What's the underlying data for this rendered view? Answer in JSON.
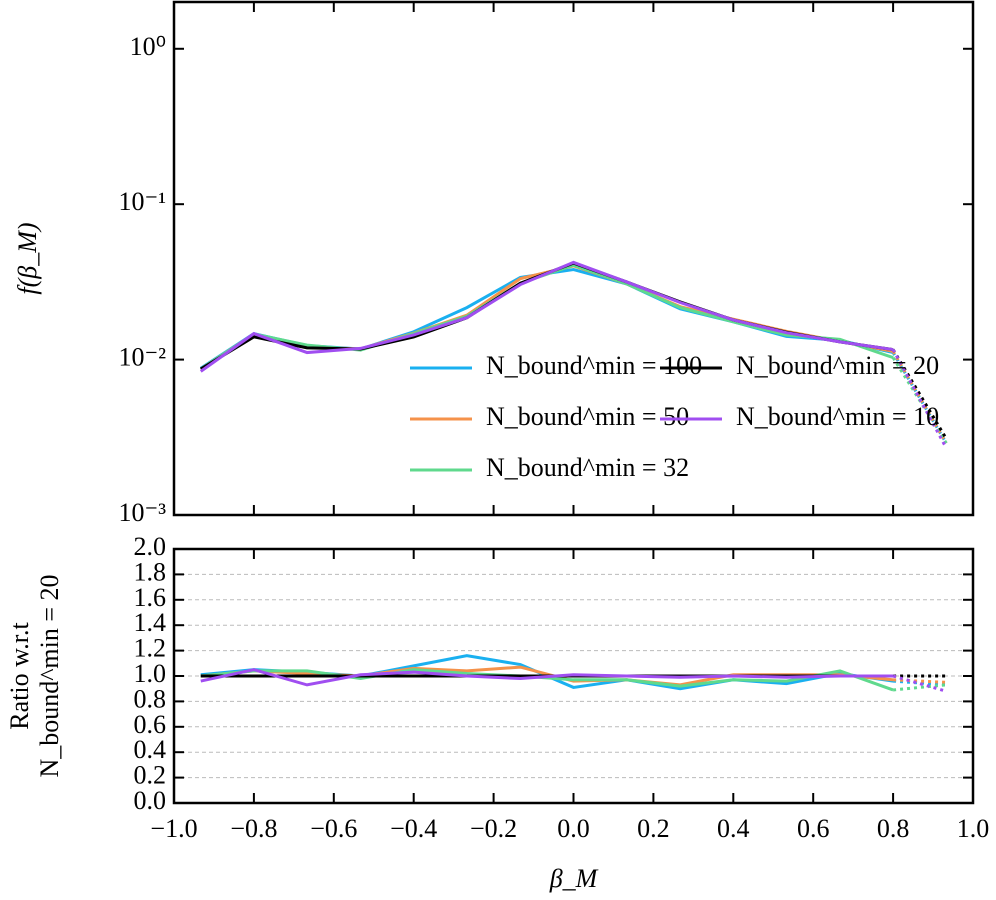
{
  "chart_data": [
    {
      "type": "line",
      "ylabel": "f(β_M)",
      "yscale": "log",
      "xlim": [
        -1,
        1
      ],
      "ylim": [
        0.001,
        2
      ],
      "xticks": [
        -1,
        -0.8,
        -0.6,
        -0.4,
        -0.2,
        0,
        0.2,
        0.4,
        0.6,
        0.8,
        1
      ],
      "xtick_labels": false,
      "yticks": [
        {
          "value": 1,
          "label": "10⁰"
        },
        {
          "value": 0.1,
          "label": "10⁻¹"
        },
        {
          "value": 0.01,
          "label": "10⁻²"
        },
        {
          "value": 0.001,
          "label": "10⁻³"
        }
      ],
      "legend": "lower right",
      "legend_columns": 2,
      "last_segment_style": "dotted",
      "x": [
        -0.933,
        -0.8,
        -0.667,
        -0.533,
        -0.4,
        -0.267,
        -0.133,
        0,
        0.133,
        0.267,
        0.4,
        0.533,
        0.667,
        0.8,
        0.933
      ],
      "series": [
        {
          "name": "N_bound^min = 100",
          "color": "#1ab0f0",
          "values": [
            0.0088,
            0.0147,
            0.0123,
            0.0117,
            0.0151,
            0.0216,
            0.0338,
            0.038,
            0.0307,
            0.0212,
            0.0175,
            0.0141,
            0.0133,
            0.0111,
            0.0029
          ]
        },
        {
          "name": "N_bound^min = 50",
          "color": "#f5924a",
          "values": [
            0.0087,
            0.0146,
            0.0121,
            0.0117,
            0.0148,
            0.0193,
            0.0332,
            0.0401,
            0.0307,
            0.0219,
            0.0182,
            0.0152,
            0.0131,
            0.0113,
            0.0029
          ]
        },
        {
          "name": "N_bound^min = 32",
          "color": "#5fd98d",
          "values": [
            0.0087,
            0.0146,
            0.0124,
            0.0115,
            0.0147,
            0.019,
            0.031,
            0.0405,
            0.0307,
            0.0216,
            0.0175,
            0.0144,
            0.0135,
            0.0103,
            0.0029
          ]
        },
        {
          "name": "N_bound^min = 20",
          "color": "#000000",
          "values": [
            0.0087,
            0.014,
            0.0119,
            0.0117,
            0.014,
            0.0186,
            0.031,
            0.0418,
            0.0316,
            0.0235,
            0.018,
            0.015,
            0.013,
            0.0116,
            0.0031
          ]
        },
        {
          "name": "N_bound^min = 10",
          "color": "#a04ef0",
          "values": [
            0.0084,
            0.0147,
            0.0111,
            0.0118,
            0.0144,
            0.0186,
            0.0304,
            0.0422,
            0.0316,
            0.0233,
            0.018,
            0.0149,
            0.013,
            0.0116,
            0.0027
          ]
        }
      ]
    },
    {
      "type": "line",
      "xlabel": "β_M",
      "ylabel": [
        "Ratio w.r.t",
        "N_bound^min = 20"
      ],
      "xlim": [
        -1,
        1
      ],
      "ylim": [
        0,
        2
      ],
      "grid": true,
      "last_segment_style": "dotted",
      "xticks": [
        {
          "value": -1,
          "label": "−1.0"
        },
        {
          "value": -0.8,
          "label": "−0.8"
        },
        {
          "value": -0.6,
          "label": "−0.6"
        },
        {
          "value": -0.4,
          "label": "−0.4"
        },
        {
          "value": -0.2,
          "label": "−0.2"
        },
        {
          "value": 0,
          "label": "0.0"
        },
        {
          "value": 0.2,
          "label": "0.2"
        },
        {
          "value": 0.4,
          "label": "0.4"
        },
        {
          "value": 0.6,
          "label": "0.6"
        },
        {
          "value": 0.8,
          "label": "0.8"
        },
        {
          "value": 1,
          "label": "1.0"
        }
      ],
      "yticks": [
        {
          "value": 0,
          "label": "0.0"
        },
        {
          "value": 0.2,
          "label": "0.2"
        },
        {
          "value": 0.4,
          "label": "0.4"
        },
        {
          "value": 0.6,
          "label": "0.6"
        },
        {
          "value": 0.8,
          "label": "0.8"
        },
        {
          "value": 1,
          "label": "1.0"
        },
        {
          "value": 1.2,
          "label": "1.2"
        },
        {
          "value": 1.4,
          "label": "1.4"
        },
        {
          "value": 1.6,
          "label": "1.6"
        },
        {
          "value": 1.8,
          "label": "1.8"
        },
        {
          "value": 2,
          "label": "2.0"
        }
      ],
      "x": [
        -0.933,
        -0.8,
        -0.667,
        -0.533,
        -0.4,
        -0.267,
        -0.133,
        0,
        0.133,
        0.267,
        0.4,
        0.533,
        0.667,
        0.8,
        0.933
      ],
      "series": [
        {
          "color": "#1ab0f0",
          "values": [
            1.01,
            1.05,
            1.03,
            1.0,
            1.08,
            1.16,
            1.09,
            0.91,
            0.97,
            0.9,
            0.97,
            0.94,
            1.02,
            0.96,
            0.93
          ]
        },
        {
          "color": "#f5924a",
          "values": [
            1.0,
            1.04,
            1.02,
            1.0,
            1.06,
            1.04,
            1.07,
            0.96,
            0.97,
            0.93,
            1.01,
            1.01,
            1.01,
            0.97,
            0.95
          ]
        },
        {
          "color": "#5fd98d",
          "values": [
            1.0,
            1.04,
            1.04,
            0.98,
            1.05,
            1.02,
            1.0,
            0.97,
            0.97,
            0.92,
            0.97,
            0.96,
            1.04,
            0.89,
            0.93
          ]
        },
        {
          "color": "#000000",
          "values": [
            1.0,
            1.0,
            1.0,
            1.0,
            1.0,
            1.0,
            1.0,
            1.0,
            1.0,
            1.0,
            1.0,
            1.0,
            1.0,
            1.0,
            1.0
          ]
        },
        {
          "color": "#a04ef0",
          "values": [
            0.96,
            1.05,
            0.93,
            1.01,
            1.03,
            1.0,
            0.98,
            1.01,
            1.0,
            0.99,
            1.0,
            0.99,
            1.0,
            1.0,
            0.88
          ]
        }
      ]
    }
  ]
}
